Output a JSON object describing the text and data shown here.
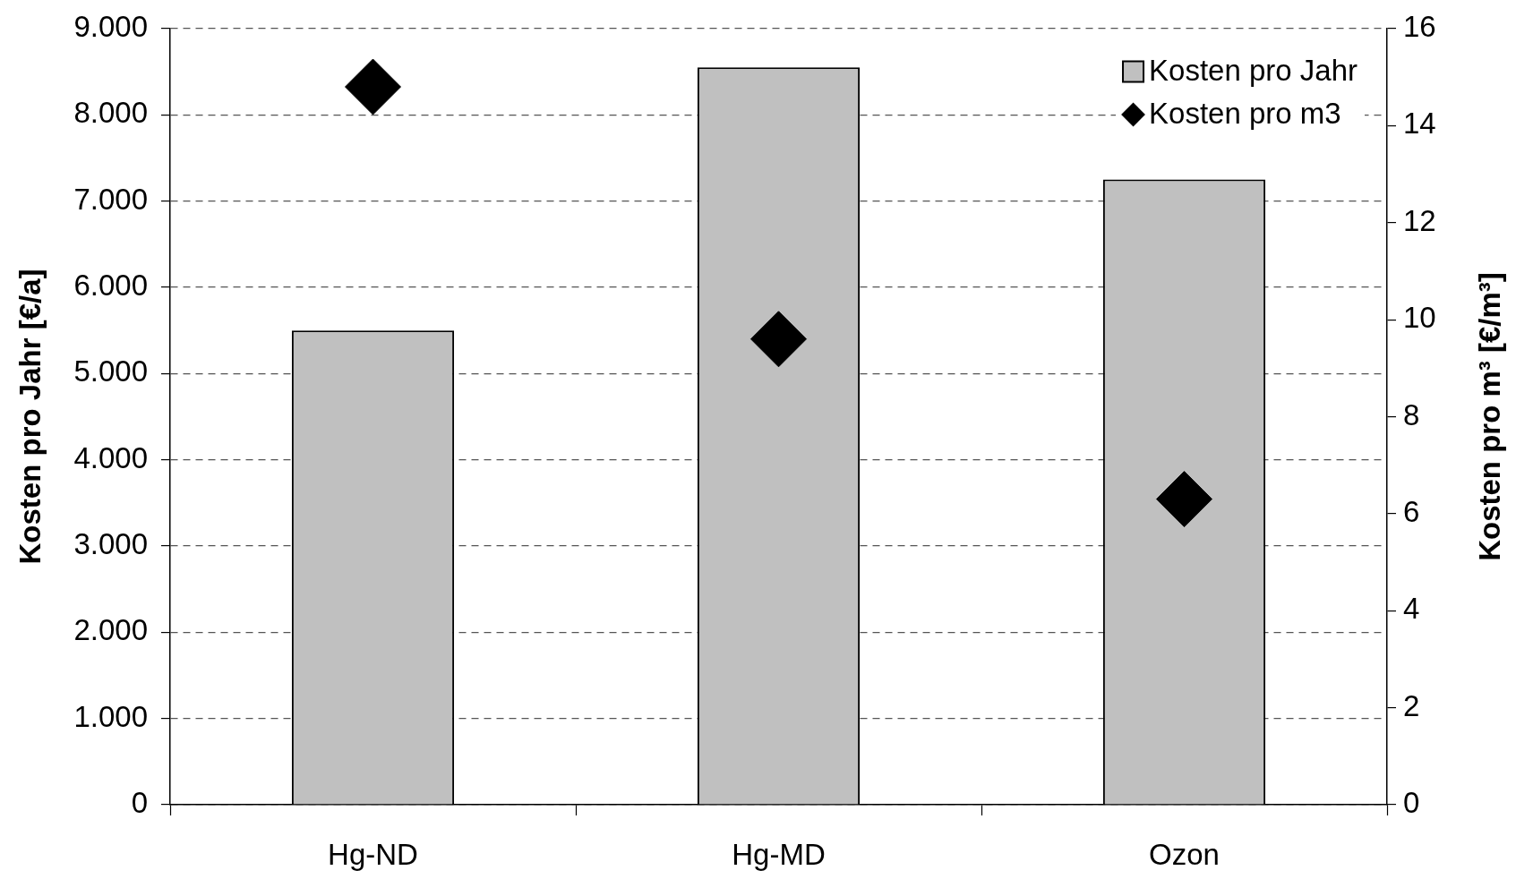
{
  "chart_data": {
    "type": "bar",
    "categories": [
      "Hg-ND",
      "Hg-MD",
      "Ozon"
    ],
    "ylabel": "Kosten pro Jahr [€/a]",
    "y2label": "Kosten pro m³ [€/m³]",
    "series": [
      {
        "name": "Kosten pro Jahr",
        "color": "#c0c0c0",
        "values": [
          5500,
          8550,
          7250
        ]
      },
      {
        "name": "Kosten pro m3",
        "type": "scatter",
        "color": "#000000",
        "axis": "y2",
        "marker": "diamond",
        "x": [
          "Hg-ND",
          "Hg-MD",
          "Ozon"
        ],
        "values": [
          14.8,
          9.6,
          6.3
        ]
      }
    ],
    "ylim": [
      0,
      9000
    ],
    "yticks": [
      0,
      {
        "value": 1000,
        "label": "1.000"
      },
      {
        "value": 2000,
        "label": "2.000"
      },
      {
        "value": 3000,
        "label": "3.000"
      },
      {
        "value": 4000,
        "label": "4.000"
      },
      {
        "value": 5000,
        "label": "5.000"
      },
      {
        "value": 6000,
        "label": "6.000"
      },
      {
        "value": 7000,
        "label": "7.000"
      },
      {
        "value": 8000,
        "label": "8.000"
      },
      {
        "value": 9000,
        "label": "9.000"
      }
    ],
    "y2lim": [
      0,
      16
    ],
    "y2ticks": [
      0,
      2,
      4,
      6,
      8,
      10,
      12,
      14,
      16
    ],
    "grid": "y",
    "legend": "top right"
  }
}
